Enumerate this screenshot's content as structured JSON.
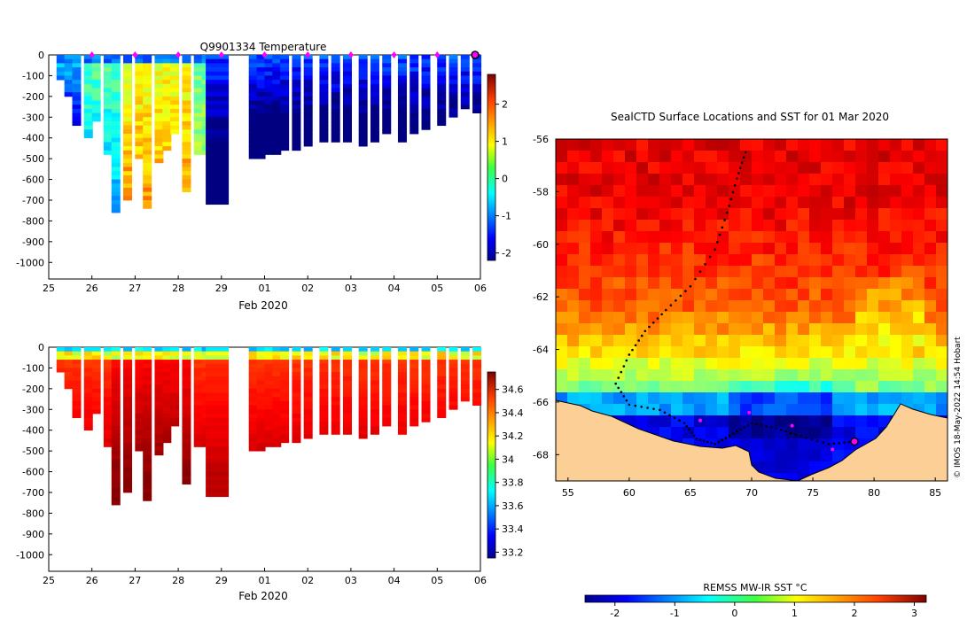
{
  "chart_data": [
    {
      "type": "heatmap",
      "title": "Q9901334  Temperature",
      "xlabel": "Feb 2020",
      "x_tick_labels": [
        "25",
        "26",
        "27",
        "28",
        "29",
        "01",
        "02",
        "03",
        "04",
        "05",
        "06"
      ],
      "y_tick_labels": [
        "0",
        "-100",
        "-200",
        "-300",
        "-400",
        "-500",
        "-600",
        "-700",
        "-800",
        "-900",
        "-1000"
      ],
      "ylim": [
        -1080,
        0
      ],
      "colorbar_ticks": [
        "2",
        "1",
        "0",
        "-1",
        "-2"
      ],
      "colorbar_range": [
        -2.2,
        2.8
      ],
      "profile_days": [
        25.3,
        25.5,
        25.7,
        26.0,
        26.2,
        26.5,
        26.7,
        27.0,
        27.3,
        27.5,
        27.8,
        28.0,
        28.2,
        28.5,
        28.8,
        29.0,
        29.5,
        30.2,
        30.4,
        30.6,
        30.8,
        31.0,
        31.3,
        31.6,
        32.0,
        32.3,
        32.6,
        33.0,
        33.3,
        33.6,
        34.0,
        34.3,
        34.6,
        35.0,
        35.3,
        35.6,
        35.9
      ],
      "profile_max_depth": [
        120,
        200,
        340,
        400,
        320,
        480,
        750,
        690,
        500,
        740,
        520,
        460,
        380,
        660,
        470,
        480,
        720,
        490,
        490,
        480,
        470,
        460,
        450,
        430,
        420,
        420,
        410,
        430,
        420,
        380,
        410,
        380,
        360,
        330,
        300,
        250,
        280
      ],
      "surface_markers": [
        "26",
        "27",
        "28",
        "29",
        "01",
        "02",
        "03",
        "04",
        "05"
      ]
    },
    {
      "type": "heatmap",
      "xlabel": "Feb 2020",
      "x_tick_labels": [
        "25",
        "26",
        "27",
        "28",
        "29",
        "01",
        "02",
        "03",
        "04",
        "05",
        "06"
      ],
      "y_tick_labels": [
        "0",
        "-100",
        "-200",
        "-300",
        "-400",
        "-500",
        "-600",
        "-700",
        "-800",
        "-900",
        "-1000"
      ],
      "ylim": [
        -1080,
        0
      ],
      "colorbar_ticks": [
        "34.6",
        "34.4",
        "34.2",
        "34",
        "33.8",
        "33.6",
        "33.4",
        "33.2"
      ],
      "colorbar_range": [
        33.15,
        34.75
      ]
    },
    {
      "type": "heatmap",
      "title": "SealCTD Surface Locations and SST for 01 Mar 2020",
      "x_tick_labels": [
        "55",
        "60",
        "65",
        "70",
        "75",
        "80",
        "85"
      ],
      "y_tick_labels": [
        "-56",
        "-58",
        "-60",
        "-62",
        "-64",
        "-66",
        "-68"
      ],
      "xlim": [
        54,
        86
      ],
      "ylim": [
        -69,
        -56
      ],
      "colorbar_label": "REMSS MW-IR SST °C",
      "colorbar_ticks": [
        "-2",
        "-1",
        "0",
        "1",
        "2",
        "3"
      ],
      "colorbar_range": [
        -2.5,
        3.2
      ],
      "credit": "© IMOS 18-May-2022 14:54 Hobart"
    }
  ],
  "colors": {
    "jet": [
      "#00008f",
      "#0000ff",
      "#0080ff",
      "#00ffff",
      "#80ff80",
      "#ffff00",
      "#ff8000",
      "#ff0000",
      "#800000"
    ],
    "land": "#fccf97",
    "marker": "#ff00ff"
  }
}
